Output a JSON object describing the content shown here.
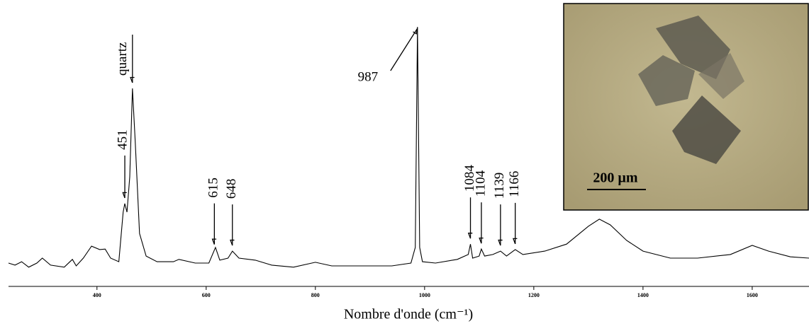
{
  "chart_data": {
    "type": "line",
    "xlabel": "Nombre d'onde (cm⁻¹)",
    "xlim": [
      238,
      1704
    ],
    "xticks": [
      400,
      600,
      800,
      1000,
      1200,
      1400,
      1600
    ],
    "ylim": [
      0,
      100
    ],
    "color": "#000000",
    "x": [
      238,
      250,
      262,
      275,
      290,
      300,
      315,
      340,
      355,
      362,
      375,
      390,
      405,
      415,
      425,
      440,
      448,
      451,
      455,
      460,
      465,
      470,
      478,
      490,
      510,
      540,
      550,
      580,
      605,
      617,
      625,
      640,
      648,
      660,
      690,
      720,
      760,
      800,
      830,
      880,
      940,
      975,
      983,
      987,
      991,
      996,
      1020,
      1060,
      1080,
      1084,
      1088,
      1100,
      1104,
      1110,
      1125,
      1139,
      1150,
      1166,
      1180,
      1220,
      1260,
      1300,
      1320,
      1340,
      1370,
      1400,
      1450,
      1500,
      1560,
      1600,
      1630,
      1670,
      1704
    ],
    "values": [
      9.0,
      8.2,
      9.5,
      7.4,
      9.0,
      10.9,
      8.2,
      7.4,
      10.4,
      7.9,
      10.9,
      15.5,
      14.2,
      14.4,
      10.9,
      9.5,
      28.6,
      31.9,
      28.6,
      42.2,
      76.3,
      55.9,
      20.4,
      11.7,
      9.5,
      9.5,
      10.4,
      9.0,
      9.0,
      15.0,
      10.1,
      10.9,
      13.6,
      10.9,
      10.1,
      8.2,
      7.4,
      9.3,
      7.9,
      7.9,
      7.9,
      9.0,
      15.0,
      100,
      15.0,
      9.5,
      9.0,
      10.4,
      12.3,
      16.3,
      10.9,
      11.7,
      14.4,
      11.7,
      12.3,
      13.6,
      11.7,
      14.2,
      12.3,
      13.6,
      16.3,
      23.2,
      25.9,
      23.7,
      17.7,
      13.6,
      10.9,
      10.9,
      12.3,
      15.8,
      13.6,
      11.4,
      10.9
    ],
    "annotations": [
      {
        "text": "451",
        "x": 451
      },
      {
        "text": "quartz",
        "x": 465
      },
      {
        "text": "615",
        "x": 615
      },
      {
        "text": "648",
        "x": 648
      },
      {
        "text": "987",
        "x": 987
      },
      {
        "text": "1084",
        "x": 1084
      },
      {
        "text": "1104",
        "x": 1104
      },
      {
        "text": "1139",
        "x": 1139
      },
      {
        "text": "1166",
        "x": 1166
      }
    ],
    "inset_label": "200 µm"
  }
}
